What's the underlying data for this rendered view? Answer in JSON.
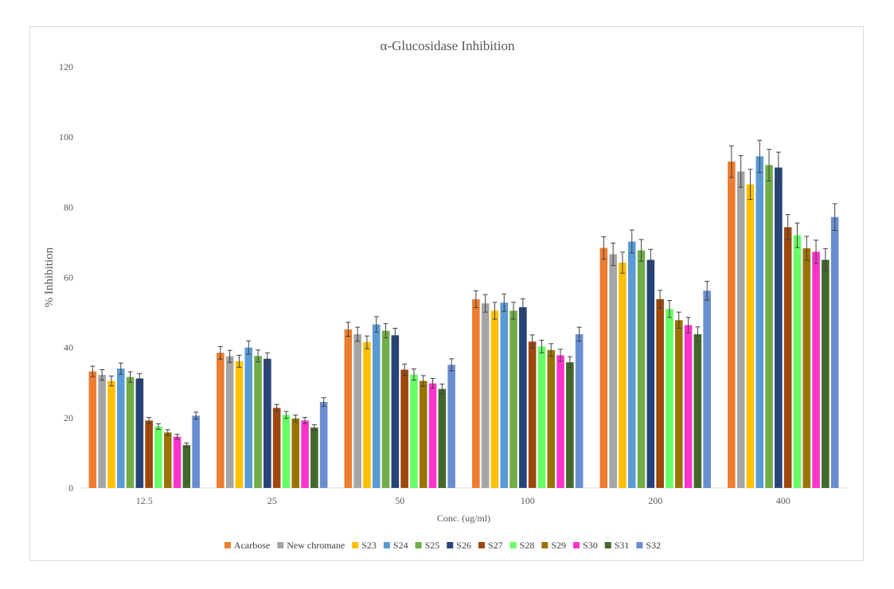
{
  "chart_data": {
    "type": "bar",
    "title": "α-Glucosidase Inhibition",
    "xlabel": "Conc. (ug/ml)",
    "ylabel": "% Inhibition",
    "ylim": [
      0,
      120
    ],
    "yticks": [
      0,
      20,
      40,
      60,
      80,
      100,
      120
    ],
    "grid": false,
    "legend_position": "bottom",
    "error_bars": true,
    "categories": [
      "12.5",
      "25",
      "50",
      "100",
      "200",
      "400"
    ],
    "series": [
      {
        "name": "Acarbose",
        "color": "#ed7d31",
        "values": [
          33.2,
          38.5,
          45.2,
          53.8,
          68.4,
          93.0
        ],
        "errors": [
          1.5,
          1.8,
          2.0,
          2.4,
          3.2,
          4.5
        ]
      },
      {
        "name": "New chromane",
        "color": "#a5a5a5",
        "values": [
          32.2,
          37.5,
          43.8,
          52.6,
          66.6,
          90.2
        ],
        "errors": [
          1.5,
          1.7,
          2.0,
          2.5,
          3.2,
          4.5
        ]
      },
      {
        "name": "S23",
        "color": "#ffc000",
        "values": [
          30.5,
          36.1,
          41.5,
          50.5,
          64.2,
          86.5
        ],
        "errors": [
          1.4,
          1.7,
          1.8,
          2.4,
          3.0,
          4.3
        ]
      },
      {
        "name": "S24",
        "color": "#5b9bd5",
        "values": [
          34.0,
          40.0,
          46.6,
          52.8,
          70.2,
          94.5
        ],
        "errors": [
          1.6,
          1.9,
          2.2,
          2.5,
          3.3,
          4.6
        ]
      },
      {
        "name": "S25",
        "color": "#70ad47",
        "values": [
          31.6,
          37.6,
          44.8,
          50.5,
          67.7,
          92.0
        ],
        "errors": [
          1.5,
          1.7,
          2.0,
          2.4,
          3.1,
          4.5
        ]
      },
      {
        "name": "S26",
        "color": "#264478",
        "values": [
          31.2,
          36.8,
          43.5,
          51.5,
          65.0,
          91.3
        ],
        "errors": [
          1.4,
          1.7,
          2.0,
          2.4,
          3.0,
          4.4
        ]
      },
      {
        "name": "S27",
        "color": "#9e480e",
        "values": [
          19.2,
          22.8,
          33.7,
          41.7,
          53.8,
          74.3
        ],
        "errors": [
          0.9,
          1.0,
          1.6,
          1.9,
          2.5,
          3.6
        ]
      },
      {
        "name": "S28",
        "color": "#66ff66",
        "values": [
          17.5,
          20.8,
          32.3,
          40.3,
          51.0,
          72.0
        ],
        "errors": [
          0.8,
          1.0,
          1.6,
          1.8,
          2.4,
          3.5
        ]
      },
      {
        "name": "S29",
        "color": "#997300",
        "values": [
          15.8,
          19.8,
          30.5,
          39.3,
          47.8,
          68.3
        ],
        "errors": [
          0.8,
          1.0,
          1.5,
          1.8,
          2.3,
          3.4
        ]
      },
      {
        "name": "S30",
        "color": "#ff33cc",
        "values": [
          14.6,
          19.2,
          29.8,
          37.8,
          46.4,
          67.3
        ],
        "errors": [
          0.7,
          0.9,
          1.4,
          1.7,
          2.2,
          3.3
        ]
      },
      {
        "name": "S31",
        "color": "#43682b",
        "values": [
          12.2,
          17.2,
          28.2,
          35.8,
          43.8,
          65.0
        ],
        "errors": [
          0.6,
          0.8,
          1.4,
          1.6,
          2.1,
          3.2
        ]
      },
      {
        "name": "S32",
        "color": "#698ed0",
        "values": [
          20.6,
          24.5,
          35.1,
          43.8,
          56.2,
          77.2
        ],
        "errors": [
          1.0,
          1.2,
          1.7,
          2.0,
          2.7,
          3.8
        ]
      }
    ]
  }
}
